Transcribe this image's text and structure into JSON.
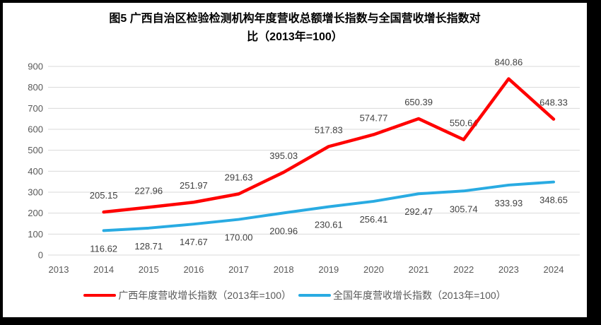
{
  "title": {
    "line1": "图5  广西自治区检验检测机构年度营收总额增长指数与全国营收增长指数对",
    "line2": "比（2013年=100）"
  },
  "colors": {
    "background": "#FFFFFF",
    "frame": "#000000",
    "grid": "#D9D9D9",
    "axis_text": "#595959",
    "label_text": "#404040",
    "title_text": "#000000",
    "series_guangxi": "#FF0000",
    "series_national": "#29ABE2"
  },
  "chart_data": {
    "type": "line",
    "title": "图5 广西自治区检验检测机构年度营收总额增长指数与全国营收增长指数对比（2013年=100）",
    "x": [
      2013,
      2014,
      2015,
      2016,
      2017,
      2018,
      2019,
      2020,
      2021,
      2022,
      2023,
      2024
    ],
    "series": [
      {
        "name": "广西年度营收增长指数（2013年=100）",
        "color": "#FF0000",
        "values": [
          null,
          205.15,
          227.96,
          251.97,
          291.63,
          395.03,
          517.83,
          574.77,
          650.39,
          550.64,
          840.86,
          648.33
        ]
      },
      {
        "name": "全国年度营收增长指数（2013年=100）",
        "color": "#29ABE2",
        "values": [
          null,
          116.62,
          128.71,
          147.67,
          170.0,
          200.96,
          230.61,
          256.41,
          292.47,
          305.74,
          333.93,
          348.65
        ]
      }
    ],
    "xlabel": "",
    "ylabel": "",
    "ylim": [
      0,
      900
    ],
    "ytick_step": 100,
    "grid": true,
    "legend_position": "bottom",
    "data_labels": true,
    "label_decimals": 2
  }
}
